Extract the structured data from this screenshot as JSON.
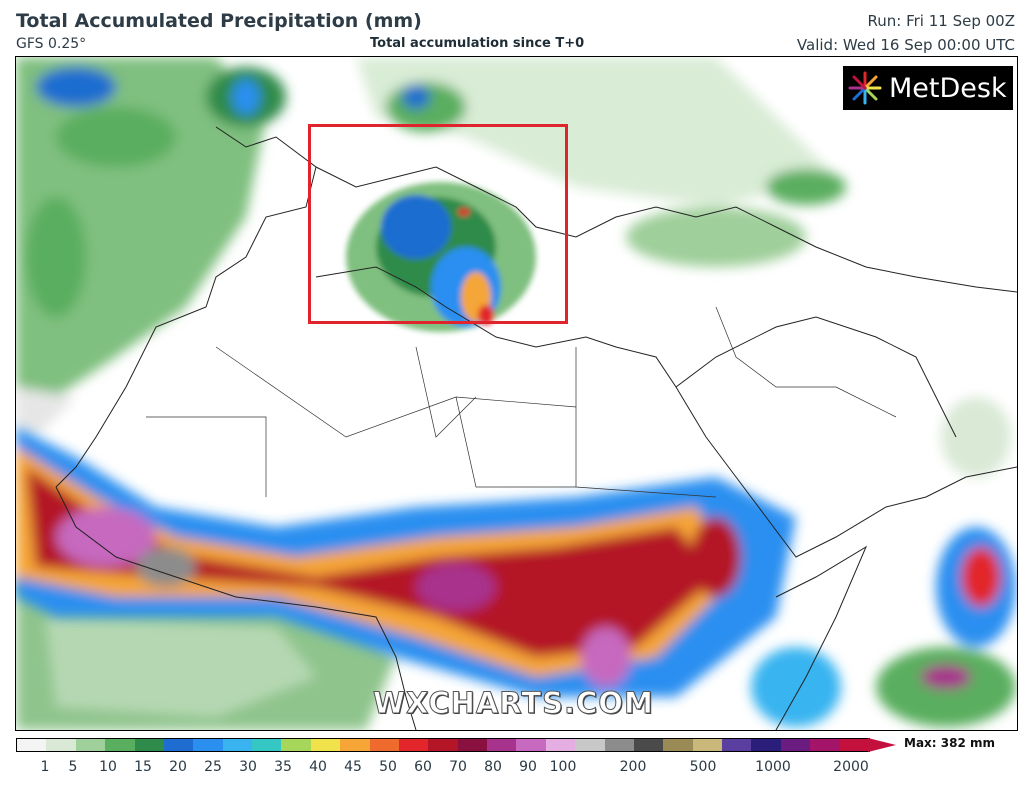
{
  "header": {
    "title": "Total Accumulated Precipitation (mm)",
    "model": "GFS 0.25°",
    "subtitle": "Total accumulation since T+0",
    "run": "Run: Fri 11 Sep 00Z",
    "valid": "Valid: Wed 16 Sep 00:00 UTC"
  },
  "logo": {
    "text": "MetDesk"
  },
  "watermark": "WXCHARTS.COM",
  "colorbar": {
    "max_label": "Max: 382 mm",
    "ticks": [
      "1",
      "5",
      "10",
      "15",
      "20",
      "25",
      "30",
      "35",
      "40",
      "45",
      "50",
      "60",
      "70",
      "80",
      "90",
      "100",
      "200",
      "500",
      "1000",
      "2000"
    ],
    "colors": [
      "#f4f4f4",
      "#d9e9d6",
      "#9fcf9a",
      "#5aae5f",
      "#2e8b4a",
      "#1f6dd0",
      "#2b8ff0",
      "#39b4f0",
      "#34c7c3",
      "#a6d65a",
      "#f0e24a",
      "#f5a637",
      "#ef6a2d",
      "#e2262b",
      "#b41628",
      "#8a1040",
      "#a8338c",
      "#c669bf",
      "#e4aee2",
      "#c8c8c8",
      "#8c8c8c",
      "#4a4a4a",
      "#9a8a55",
      "#c9b87a",
      "#5a3fa0",
      "#2a1e7a",
      "#6a1c80",
      "#a4156a",
      "#c4103c"
    ]
  },
  "highlight": {
    "color": "#e0242e"
  }
}
